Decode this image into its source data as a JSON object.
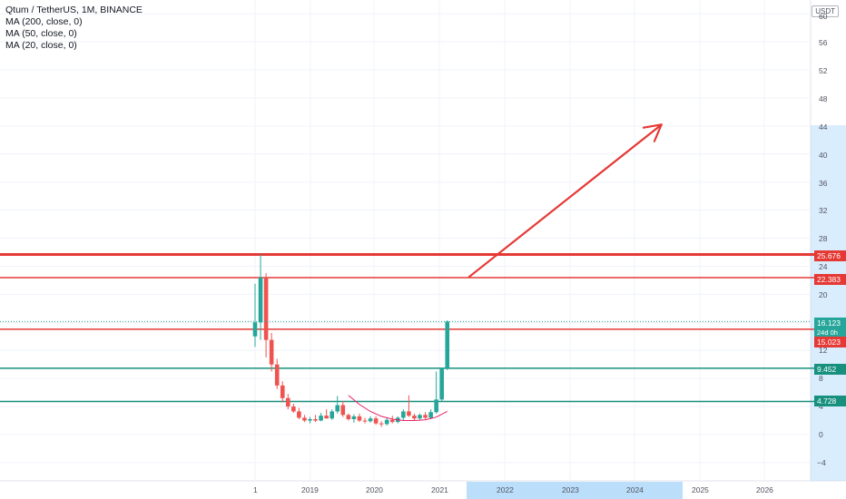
{
  "legend": {
    "symbol": "Qtum / TetherUS, 1M, BINANCE",
    "indicators": [
      "MA (200, close, 0)",
      "MA (50, close, 0)",
      "MA (20, close, 0)"
    ]
  },
  "currency_button": "USDT",
  "price_axis": {
    "ticks": [
      "60",
      "56",
      "52",
      "48",
      "44",
      "40",
      "36",
      "32",
      "28",
      "24",
      "20",
      "12",
      "8",
      "4",
      "0",
      "−4"
    ]
  },
  "time_axis": {
    "ticks": [
      "1",
      "2019",
      "2020",
      "2021",
      "2022",
      "2023",
      "2024",
      "2025",
      "2026"
    ]
  },
  "price_labels": {
    "res_top": "25.676",
    "res_mid": "22.383",
    "current": "16.123",
    "countdown": "24d 0h",
    "res_low": "15.023",
    "sup_high": "9.452",
    "sup_low": "4.728"
  },
  "colors": {
    "up": "#26a69a",
    "down": "#ef5350",
    "resistance": "#e53935",
    "support": "#17907e",
    "ma": "#e91e63",
    "arrow": "#e53935",
    "axis_highlight": "#bbdefb"
  },
  "chart_data": {
    "type": "candlestick",
    "interval": "1M",
    "candles": [
      {
        "o": 14.0,
        "h": 21.5,
        "l": 12.5,
        "c": 16.0
      },
      {
        "o": 16.0,
        "h": 25.7,
        "l": 13.5,
        "c": 22.4
      },
      {
        "o": 22.4,
        "h": 23.0,
        "l": 11.0,
        "c": 13.5
      },
      {
        "o": 13.5,
        "h": 14.5,
        "l": 9.0,
        "c": 10.0
      },
      {
        "o": 10.0,
        "h": 10.8,
        "l": 6.5,
        "c": 7.0
      },
      {
        "o": 7.0,
        "h": 7.6,
        "l": 4.6,
        "c": 5.2
      },
      {
        "o": 5.2,
        "h": 5.8,
        "l": 3.6,
        "c": 4.0
      },
      {
        "o": 4.0,
        "h": 4.4,
        "l": 3.1,
        "c": 3.3
      },
      {
        "o": 3.3,
        "h": 3.8,
        "l": 2.2,
        "c": 2.4
      },
      {
        "o": 2.4,
        "h": 2.8,
        "l": 1.8,
        "c": 2.0
      },
      {
        "o": 2.0,
        "h": 2.5,
        "l": 1.6,
        "c": 2.2
      },
      {
        "o": 2.2,
        "h": 2.8,
        "l": 1.8,
        "c": 2.0
      },
      {
        "o": 2.0,
        "h": 3.1,
        "l": 1.9,
        "c": 2.7
      },
      {
        "o": 2.7,
        "h": 3.6,
        "l": 2.3,
        "c": 2.3
      },
      {
        "o": 2.3,
        "h": 3.6,
        "l": 2.1,
        "c": 3.3
      },
      {
        "o": 3.3,
        "h": 5.5,
        "l": 3.0,
        "c": 4.2
      },
      {
        "o": 4.2,
        "h": 4.8,
        "l": 2.5,
        "c": 2.8
      },
      {
        "o": 2.8,
        "h": 3.0,
        "l": 2.0,
        "c": 2.2
      },
      {
        "o": 2.2,
        "h": 2.9,
        "l": 1.7,
        "c": 2.6
      },
      {
        "o": 2.6,
        "h": 3.0,
        "l": 1.8,
        "c": 2.0
      },
      {
        "o": 2.0,
        "h": 2.4,
        "l": 1.6,
        "c": 1.9
      },
      {
        "o": 1.9,
        "h": 2.6,
        "l": 1.7,
        "c": 2.3
      },
      {
        "o": 2.3,
        "h": 2.6,
        "l": 1.4,
        "c": 1.6
      },
      {
        "o": 1.6,
        "h": 1.9,
        "l": 1.1,
        "c": 1.5
      },
      {
        "o": 1.5,
        "h": 2.4,
        "l": 1.3,
        "c": 2.1
      },
      {
        "o": 2.1,
        "h": 2.7,
        "l": 1.6,
        "c": 1.8
      },
      {
        "o": 1.8,
        "h": 2.6,
        "l": 1.6,
        "c": 2.4
      },
      {
        "o": 2.4,
        "h": 3.6,
        "l": 2.0,
        "c": 3.3
      },
      {
        "o": 3.3,
        "h": 5.6,
        "l": 2.5,
        "c": 2.7
      },
      {
        "o": 2.7,
        "h": 3.0,
        "l": 2.0,
        "c": 2.3
      },
      {
        "o": 2.3,
        "h": 3.0,
        "l": 2.1,
        "c": 2.8
      },
      {
        "o": 2.8,
        "h": 3.2,
        "l": 2.2,
        "c": 2.4
      },
      {
        "o": 2.4,
        "h": 3.6,
        "l": 2.2,
        "c": 3.2
      },
      {
        "o": 3.2,
        "h": 9.0,
        "l": 3.0,
        "c": 5.0
      },
      {
        "o": 5.0,
        "h": 9.5,
        "l": 4.8,
        "c": 9.45
      },
      {
        "o": 9.45,
        "h": 16.3,
        "l": 9.2,
        "c": 16.12
      }
    ],
    "ma": [
      {
        "i": 17,
        "v": 5.6
      },
      {
        "i": 19,
        "v": 4.3
      },
      {
        "i": 21,
        "v": 3.3
      },
      {
        "i": 23,
        "v": 2.6
      },
      {
        "i": 25,
        "v": 2.2
      },
      {
        "i": 27,
        "v": 2.0
      },
      {
        "i": 29,
        "v": 2.0
      },
      {
        "i": 31,
        "v": 2.1
      },
      {
        "i": 33,
        "v": 2.5
      },
      {
        "i": 35,
        "v": 3.3
      }
    ],
    "levels": {
      "res_top": 25.676,
      "res_mid": 22.383,
      "res_low": 15.023,
      "sup_high": 9.452,
      "sup_low": 4.728
    },
    "arrow": {
      "from_index": 39,
      "from_v": 22.5,
      "to_index": 74,
      "to_v": 44.2
    },
    "ylim": [
      -6,
      61
    ]
  }
}
